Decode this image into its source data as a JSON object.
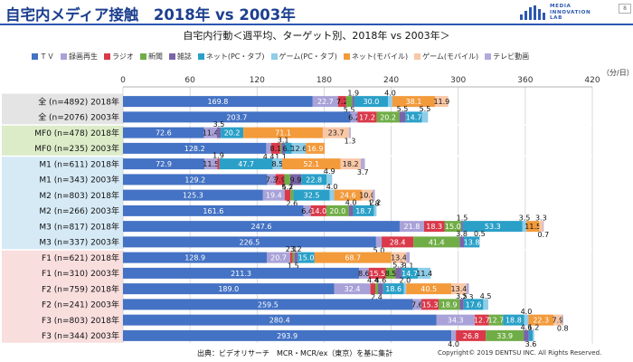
{
  "header": {
    "title": "自宅内メディア接触　2018年 vs 2003年",
    "logo_lines": [
      "MEDIA",
      "INNOVATION",
      "LAB"
    ],
    "page_number": "8"
  },
  "footer": {
    "source": "出典：ビデオリサーチ　MCR・MCR/ex（東京）を基に集計",
    "copyright": "Copyright© 2019 DENTSU INC. All Rights Reserved."
  },
  "colors": {
    "header_blue": "#1c3f8f",
    "group_bg": [
      "#e4e4e4",
      "#dcecc8",
      "#d6eaf6",
      "#f9dede"
    ]
  },
  "chart_data": {
    "type": "bar",
    "orientation": "horizontal",
    "stacked": true,
    "title": "自宅内行動＜週平均、ターゲット別、2018年 vs 2003年＞",
    "unit": "（分/日）",
    "xlim": [
      0,
      420
    ],
    "xticks": [
      0,
      60,
      120,
      180,
      240,
      300,
      360,
      420
    ],
    "grid": true,
    "legend_position": "top",
    "series": [
      {
        "name": "ＴＶ",
        "color": "#4472c4"
      },
      {
        "name": "録画再生",
        "color": "#a9a2d8"
      },
      {
        "name": "ラジオ",
        "color": "#d9394a"
      },
      {
        "name": "新聞",
        "color": "#70ad47"
      },
      {
        "name": "雑誌",
        "color": "#7a64a8"
      },
      {
        "name": "ネット(PC・タブ)",
        "color": "#2aa0c8"
      },
      {
        "name": "ゲーム(PC・タブ)",
        "color": "#8fcde8"
      },
      {
        "name": "ネット(モバイル)",
        "color": "#f39a3b"
      },
      {
        "name": "ゲーム(モバイル)",
        "color": "#f8c7a6"
      },
      {
        "name": "テレビ動画",
        "color": "#b3a9d8"
      }
    ],
    "groups": [
      {
        "rows": [
          0,
          1
        ]
      },
      {
        "rows": [
          2,
          3
        ]
      },
      {
        "rows": [
          4,
          5,
          6,
          7,
          8,
          9
        ]
      },
      {
        "rows": [
          10,
          11,
          12,
          13,
          14,
          15
        ]
      }
    ],
    "rows": [
      {
        "label": "全 (n=4892) 2018年",
        "values": [
          169.8,
          22.7,
          7.2,
          5.5,
          1.9,
          30.0,
          4.0,
          38.1,
          11.9,
          0
        ]
      },
      {
        "label": "全 (n=2076) 2003年",
        "values": [
          203.7,
          6.2,
          17.2,
          20.2,
          5.5,
          14.7,
          5.5,
          0,
          0,
          0
        ]
      },
      {
        "label": "MF0 (n=478) 2018年",
        "values": [
          72.6,
          11.4,
          0,
          0,
          3.5,
          20.2,
          0,
          71.1,
          23.7,
          1.3
        ]
      },
      {
        "label": "MF0 (n=235) 2003年",
        "values": [
          128.2,
          4.4,
          8.1,
          1.1,
          3.1,
          6.1,
          12.6,
          16.9,
          0,
          0
        ]
      },
      {
        "label": "M1 (n=611) 2018年",
        "values": [
          72.9,
          11.5,
          1.9,
          0,
          0,
          47.7,
          8.5,
          52.1,
          18.2,
          3.7
        ]
      },
      {
        "label": "M1 (n=343) 2003年",
        "values": [
          129.2,
          7.3,
          7.9,
          5.2,
          9.9,
          22.8,
          4.9,
          0,
          0,
          0
        ]
      },
      {
        "label": "M2 (n=803) 2018年",
        "values": [
          125.3,
          19.4,
          5.2,
          2.6,
          0,
          32.5,
          4.0,
          24.6,
          10.0,
          1.8
        ]
      },
      {
        "label": "M2 (n=266) 2003年",
        "values": [
          161.6,
          6.4,
          14.0,
          20.0,
          4.0,
          18.7,
          2.2,
          0,
          0,
          0
        ]
      },
      {
        "label": "M3 (n=817) 2018年",
        "values": [
          247.6,
          21.8,
          18.3,
          15.0,
          1.5,
          53.3,
          3.5,
          11.5,
          3.3,
          0.7
        ]
      },
      {
        "label": "M3 (n=337) 2003年",
        "values": [
          226.5,
          5.0,
          28.4,
          41.4,
          3.8,
          13.8,
          0.5,
          0,
          0,
          0
        ]
      },
      {
        "label": "F1 (n=621) 2018年",
        "values": [
          128.9,
          20.7,
          2.1,
          1.5,
          3.2,
          15.0,
          0,
          68.7,
          13.4,
          3.1
        ]
      },
      {
        "label": "F1 (n=310) 2003年",
        "values": [
          211.3,
          8.6,
          15.5,
          8.5,
          5.3,
          14.7,
          11.4,
          0,
          0,
          0
        ]
      },
      {
        "label": "F2 (n=759) 2018年",
        "values": [
          189.0,
          32.4,
          4.4,
          2.4,
          4.6,
          18.6,
          2.0,
          40.5,
          13.4,
          2.3
        ]
      },
      {
        "label": "F2 (n=241) 2003年",
        "values": [
          259.5,
          7.6,
          15.3,
          18.9,
          3.5,
          17.6,
          4.5,
          0,
          0,
          0
        ]
      },
      {
        "label": "F3 (n=803) 2018年",
        "values": [
          280.4,
          34.3,
          12.7,
          12.7,
          0,
          18.8,
          4.0,
          22.3,
          7.9,
          0.8
        ]
      },
      {
        "label": "F3 (n=344) 2003年",
        "values": [
          293.9,
          4.0,
          26.8,
          33.9,
          4.6,
          3.6,
          1.2,
          0,
          0,
          0
        ]
      }
    ]
  }
}
